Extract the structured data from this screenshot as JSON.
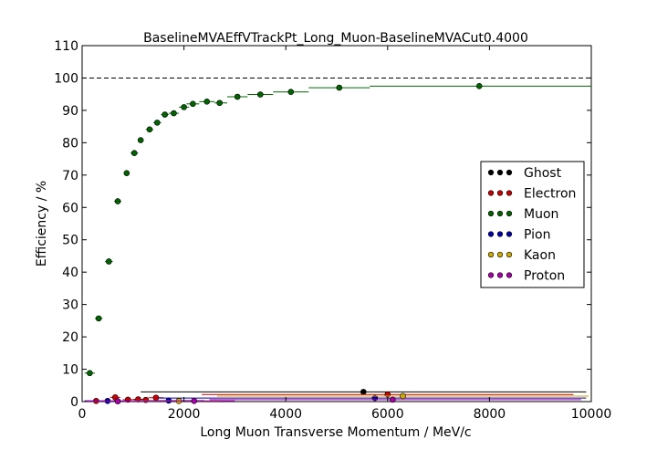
{
  "chart_data": {
    "type": "scatter",
    "title": "BaselineMVAEffVTrackPt_Long_Muon-BaselineMVACut0.4000",
    "xlabel": "Long Muon Transverse Momentum / MeV/c",
    "ylabel": "Efficiency / %",
    "xlim": [
      0,
      10000
    ],
    "ylim": [
      0,
      110
    ],
    "xticks": [
      0,
      2000,
      4000,
      6000,
      8000,
      10000
    ],
    "yticks": [
      0,
      10,
      20,
      30,
      40,
      50,
      60,
      70,
      80,
      90,
      100,
      110
    ],
    "reference_line": 100,
    "grid": false,
    "legend_position": "right",
    "series": [
      {
        "name": "Ghost",
        "color": "#000000",
        "points": [
          {
            "x": 5525,
            "y": 3.0,
            "xlo": 1150,
            "xhi": 9900
          }
        ]
      },
      {
        "name": "Electron",
        "color": "#cc0000",
        "points": [
          {
            "x": 275,
            "y": 0.2,
            "xlo": 50,
            "xhi": 500
          },
          {
            "x": 650,
            "y": 1.3,
            "xlo": 550,
            "xhi": 750
          },
          {
            "x": 900,
            "y": 0.6,
            "xlo": 800,
            "xhi": 1000
          },
          {
            "x": 1100,
            "y": 0.7,
            "xlo": 1000,
            "xhi": 1200
          },
          {
            "x": 1250,
            "y": 0.5,
            "xlo": 1200,
            "xhi": 1300
          },
          {
            "x": 1450,
            "y": 1.2,
            "xlo": 1300,
            "xhi": 1600
          },
          {
            "x": 6000,
            "y": 2.2,
            "xlo": 2350,
            "xhi": 9650
          }
        ]
      },
      {
        "name": "Muon",
        "color": "#006400",
        "points": [
          {
            "x": 150,
            "y": 8.8,
            "xlo": 50,
            "xhi": 250,
            "err": 0.6
          },
          {
            "x": 325,
            "y": 25.7,
            "xlo": 250,
            "xhi": 400,
            "err": 0.8
          },
          {
            "x": 525,
            "y": 43.3,
            "xlo": 450,
            "xhi": 600,
            "err": 0.9
          },
          {
            "x": 700,
            "y": 61.9,
            "xlo": 630,
            "xhi": 770,
            "err": 0.9
          },
          {
            "x": 875,
            "y": 70.6,
            "xlo": 820,
            "xhi": 930,
            "err": 0.8
          },
          {
            "x": 1025,
            "y": 76.8,
            "xlo": 950,
            "xhi": 1100,
            "err": 0.7
          },
          {
            "x": 1150,
            "y": 80.8,
            "xlo": 1100,
            "xhi": 1200,
            "err": 0.6
          },
          {
            "x": 1325,
            "y": 84.1,
            "xlo": 1250,
            "xhi": 1400,
            "err": 0.5
          },
          {
            "x": 1475,
            "y": 86.2,
            "xlo": 1400,
            "xhi": 1550,
            "err": 0.5
          },
          {
            "x": 1625,
            "y": 88.7,
            "xlo": 1550,
            "xhi": 1700,
            "err": 0.5
          },
          {
            "x": 1800,
            "y": 89.1,
            "xlo": 1700,
            "xhi": 1900,
            "err": 0.5
          },
          {
            "x": 2000,
            "y": 91.0,
            "xlo": 1900,
            "xhi": 2100,
            "err": 0.4
          },
          {
            "x": 2175,
            "y": 92.0,
            "xlo": 2050,
            "xhi": 2300,
            "err": 0.4
          },
          {
            "x": 2450,
            "y": 92.7,
            "xlo": 2300,
            "xhi": 2600,
            "err": 0.4
          },
          {
            "x": 2700,
            "y": 92.3,
            "xlo": 2600,
            "xhi": 2850,
            "err": 0.4
          },
          {
            "x": 3050,
            "y": 94.2,
            "xlo": 2850,
            "xhi": 3250,
            "err": 0.3
          },
          {
            "x": 3500,
            "y": 94.9,
            "xlo": 3250,
            "xhi": 3750,
            "err": 0.3
          },
          {
            "x": 4100,
            "y": 95.7,
            "xlo": 3750,
            "xhi": 4450,
            "err": 0.3
          },
          {
            "x": 5050,
            "y": 97.0,
            "xlo": 4450,
            "xhi": 5650,
            "err": 0.3
          },
          {
            "x": 7800,
            "y": 97.5,
            "xlo": 5650,
            "xhi": 10000,
            "err": 0.3
          }
        ]
      },
      {
        "name": "Pion",
        "color": "#0000aa",
        "points": [
          {
            "x": 500,
            "y": 0.2,
            "xlo": 50,
            "xhi": 950
          },
          {
            "x": 1700,
            "y": 0.3,
            "xlo": 1000,
            "xhi": 2400
          },
          {
            "x": 5750,
            "y": 1.1,
            "xlo": 1500,
            "xhi": 9900
          }
        ]
      },
      {
        "name": "Kaon",
        "color": "#ccaa00",
        "points": [
          {
            "x": 1900,
            "y": 0.2,
            "xlo": 1000,
            "xhi": 2700
          },
          {
            "x": 6300,
            "y": 1.7,
            "xlo": 2650,
            "xhi": 9950
          }
        ]
      },
      {
        "name": "Proton",
        "color": "#aa00aa",
        "points": [
          {
            "x": 700,
            "y": 0.1,
            "xlo": 50,
            "xhi": 1400
          },
          {
            "x": 2200,
            "y": 0.2,
            "xlo": 1400,
            "xhi": 3000
          },
          {
            "x": 6100,
            "y": 0.6,
            "xlo": 2500,
            "xhi": 9800
          }
        ]
      }
    ]
  }
}
